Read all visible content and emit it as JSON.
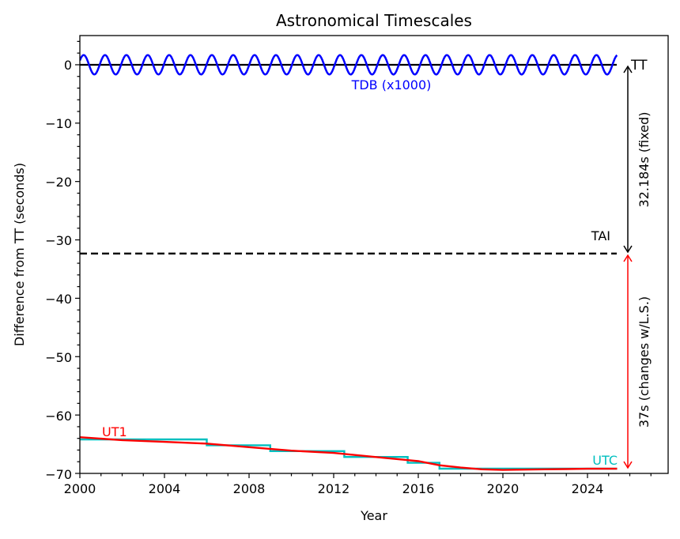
{
  "chart_data": {
    "type": "line",
    "title": "Astronomical Timescales",
    "xlabel": "Year",
    "ylabel": "Difference from TT (seconds)",
    "xlim": [
      2000,
      2027.8
    ],
    "ylim": [
      -70,
      5
    ],
    "xticks": [
      2000,
      2004,
      2008,
      2012,
      2016,
      2020,
      2024
    ],
    "xtick_labels": [
      "2000",
      "2004",
      "2008",
      "2012",
      "2016",
      "2020",
      "2024"
    ],
    "yticks": [
      0,
      -10,
      -20,
      -30,
      -40,
      -50,
      -60,
      -70
    ],
    "ytick_labels": [
      "0",
      "−10",
      "−20",
      "−30",
      "−40",
      "−50",
      "−60",
      "−70"
    ],
    "grid": false,
    "series": [
      {
        "name": "TT",
        "color": "#000000",
        "style": "solid",
        "x": [
          2000,
          2025.4
        ],
        "y": [
          0,
          0
        ]
      },
      {
        "name": "TDB (x1000)",
        "color": "#0000ff",
        "style": "solid",
        "description": "sinusoid, amplitude ~1.66 s (x1000), period ~1 yr",
        "x_range": [
          2000,
          2025.4
        ],
        "amplitude": 1.66
      },
      {
        "name": "TAI",
        "color": "#000000",
        "style": "dashed",
        "x": [
          2000,
          2025.4
        ],
        "y": [
          -32.184,
          -32.184
        ]
      },
      {
        "name": "UTC",
        "color": "#00bfbf",
        "style": "step",
        "x": [
          2000,
          2006,
          2006,
          2009,
          2009,
          2012.5,
          2012.5,
          2015.5,
          2015.5,
          2017,
          2017,
          2025.4
        ],
        "y": [
          -64.184,
          -64.184,
          -65.184,
          -65.184,
          -66.184,
          -66.184,
          -67.184,
          -67.184,
          -68.184,
          -68.184,
          -69.184,
          -69.184
        ]
      },
      {
        "name": "UT1",
        "color": "#ff0000",
        "style": "solid",
        "x": [
          2000,
          2002,
          2004,
          2006,
          2008,
          2010,
          2012,
          2014,
          2016,
          2017,
          2018,
          2019,
          2020,
          2021,
          2022,
          2023,
          2024,
          2025.4
        ],
        "y": [
          -63.8,
          -64.3,
          -64.6,
          -64.9,
          -65.5,
          -66.1,
          -66.5,
          -67.2,
          -67.9,
          -68.6,
          -69.0,
          -69.3,
          -69.4,
          -69.35,
          -69.3,
          -69.25,
          -69.2,
          -69.2
        ]
      }
    ],
    "annotations": [
      {
        "text": "TT",
        "color": "#000000"
      },
      {
        "text": "TAI",
        "color": "#000000"
      },
      {
        "text": "TDB (x1000)",
        "color": "#0000ff"
      },
      {
        "text": "UT1",
        "color": "#ff0000"
      },
      {
        "text": "UTC",
        "color": "#00bfbf"
      },
      {
        "text": "32.184s (fixed)",
        "color": "#000000",
        "kind": "double-arrow",
        "from": 0,
        "to": -32.184
      },
      {
        "text": "37s (changes w/L.S.)",
        "color": "#ff0000",
        "label_color": "#000000",
        "kind": "double-arrow",
        "from": -32.184,
        "to": -69.184
      }
    ]
  },
  "labels": {
    "title": "Astronomical Timescales",
    "xlabel": "Year",
    "ylabel": "Difference from TT (seconds)",
    "tt": "TT",
    "tai": "TAI",
    "tdb": "TDB (x1000)",
    "ut1": "UT1",
    "utc": "UTC",
    "fixed_arrow": "32.184s (fixed)",
    "ls_arrow": "37s (changes w/L.S.)",
    "xt0": "2000",
    "xt1": "2004",
    "xt2": "2008",
    "xt3": "2012",
    "xt4": "2016",
    "xt5": "2020",
    "xt6": "2024",
    "yt0": "0",
    "yt1": "−10",
    "yt2": "−20",
    "yt3": "−30",
    "yt4": "−40",
    "yt5": "−50",
    "yt6": "−60",
    "yt7": "−70"
  }
}
